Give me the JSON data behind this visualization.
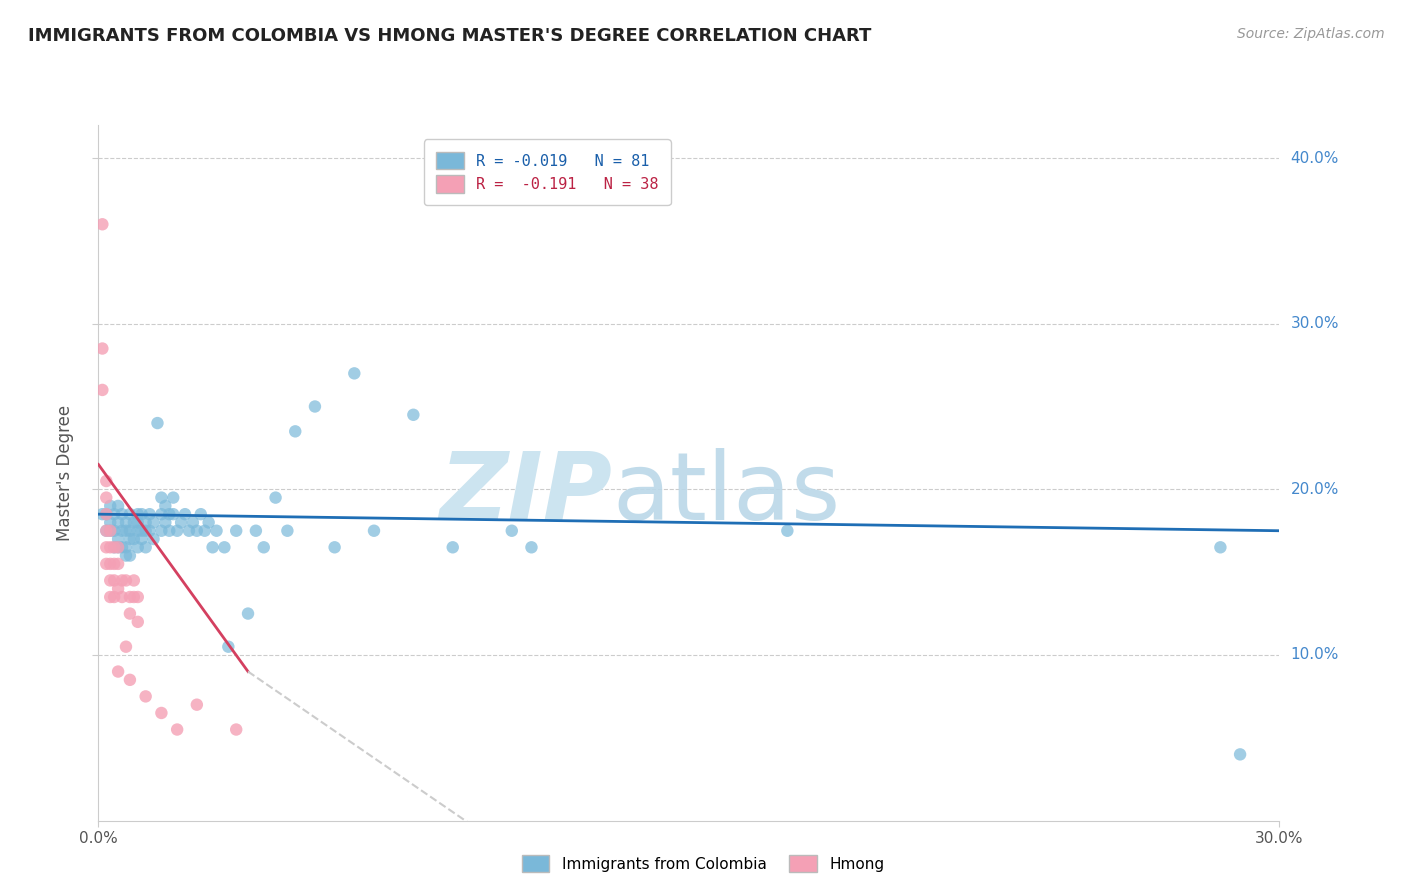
{
  "title": "IMMIGRANTS FROM COLOMBIA VS HMONG MASTER'S DEGREE CORRELATION CHART",
  "source": "Source: ZipAtlas.com",
  "ylabel": "Master's Degree",
  "xlim": [
    0.0,
    0.3
  ],
  "ylim": [
    0.0,
    0.42
  ],
  "blue_color": "#7ab8d9",
  "pink_color": "#f4a0b5",
  "blue_line_color": "#1f6eb5",
  "pink_line_color": "#d44060",
  "dashed_line_color": "#cccccc",
  "colombia_points": [
    [
      0.001,
      0.185
    ],
    [
      0.002,
      0.185
    ],
    [
      0.002,
      0.175
    ],
    [
      0.003,
      0.19
    ],
    [
      0.003,
      0.18
    ],
    [
      0.003,
      0.175
    ],
    [
      0.004,
      0.185
    ],
    [
      0.004,
      0.175
    ],
    [
      0.004,
      0.165
    ],
    [
      0.005,
      0.19
    ],
    [
      0.005,
      0.18
    ],
    [
      0.005,
      0.17
    ],
    [
      0.005,
      0.165
    ],
    [
      0.006,
      0.185
    ],
    [
      0.006,
      0.175
    ],
    [
      0.006,
      0.165
    ],
    [
      0.007,
      0.18
    ],
    [
      0.007,
      0.175
    ],
    [
      0.007,
      0.165
    ],
    [
      0.007,
      0.16
    ],
    [
      0.008,
      0.185
    ],
    [
      0.008,
      0.175
    ],
    [
      0.008,
      0.17
    ],
    [
      0.008,
      0.16
    ],
    [
      0.009,
      0.18
    ],
    [
      0.009,
      0.17
    ],
    [
      0.01,
      0.185
    ],
    [
      0.01,
      0.18
    ],
    [
      0.01,
      0.175
    ],
    [
      0.01,
      0.165
    ],
    [
      0.011,
      0.185
    ],
    [
      0.011,
      0.175
    ],
    [
      0.011,
      0.17
    ],
    [
      0.012,
      0.18
    ],
    [
      0.012,
      0.175
    ],
    [
      0.012,
      0.165
    ],
    [
      0.013,
      0.185
    ],
    [
      0.013,
      0.175
    ],
    [
      0.014,
      0.18
    ],
    [
      0.014,
      0.17
    ],
    [
      0.015,
      0.24
    ],
    [
      0.016,
      0.195
    ],
    [
      0.016,
      0.185
    ],
    [
      0.016,
      0.175
    ],
    [
      0.017,
      0.19
    ],
    [
      0.017,
      0.18
    ],
    [
      0.018,
      0.185
    ],
    [
      0.018,
      0.175
    ],
    [
      0.019,
      0.195
    ],
    [
      0.019,
      0.185
    ],
    [
      0.02,
      0.175
    ],
    [
      0.021,
      0.18
    ],
    [
      0.022,
      0.185
    ],
    [
      0.023,
      0.175
    ],
    [
      0.024,
      0.18
    ],
    [
      0.025,
      0.175
    ],
    [
      0.026,
      0.185
    ],
    [
      0.027,
      0.175
    ],
    [
      0.028,
      0.18
    ],
    [
      0.029,
      0.165
    ],
    [
      0.03,
      0.175
    ],
    [
      0.032,
      0.165
    ],
    [
      0.033,
      0.105
    ],
    [
      0.035,
      0.175
    ],
    [
      0.038,
      0.125
    ],
    [
      0.04,
      0.175
    ],
    [
      0.042,
      0.165
    ],
    [
      0.045,
      0.195
    ],
    [
      0.048,
      0.175
    ],
    [
      0.05,
      0.235
    ],
    [
      0.055,
      0.25
    ],
    [
      0.06,
      0.165
    ],
    [
      0.065,
      0.27
    ],
    [
      0.07,
      0.175
    ],
    [
      0.08,
      0.245
    ],
    [
      0.09,
      0.165
    ],
    [
      0.105,
      0.175
    ],
    [
      0.11,
      0.165
    ],
    [
      0.175,
      0.175
    ],
    [
      0.285,
      0.165
    ],
    [
      0.29,
      0.04
    ]
  ],
  "hmong_points": [
    [
      0.001,
      0.36
    ],
    [
      0.001,
      0.285
    ],
    [
      0.001,
      0.26
    ],
    [
      0.002,
      0.205
    ],
    [
      0.002,
      0.195
    ],
    [
      0.002,
      0.185
    ],
    [
      0.002,
      0.175
    ],
    [
      0.002,
      0.165
    ],
    [
      0.002,
      0.155
    ],
    [
      0.003,
      0.175
    ],
    [
      0.003,
      0.165
    ],
    [
      0.003,
      0.155
    ],
    [
      0.003,
      0.145
    ],
    [
      0.003,
      0.135
    ],
    [
      0.004,
      0.165
    ],
    [
      0.004,
      0.155
    ],
    [
      0.004,
      0.145
    ],
    [
      0.004,
      0.135
    ],
    [
      0.005,
      0.165
    ],
    [
      0.005,
      0.155
    ],
    [
      0.005,
      0.14
    ],
    [
      0.005,
      0.09
    ],
    [
      0.006,
      0.145
    ],
    [
      0.006,
      0.135
    ],
    [
      0.007,
      0.145
    ],
    [
      0.007,
      0.105
    ],
    [
      0.008,
      0.135
    ],
    [
      0.008,
      0.125
    ],
    [
      0.008,
      0.085
    ],
    [
      0.009,
      0.145
    ],
    [
      0.009,
      0.135
    ],
    [
      0.01,
      0.135
    ],
    [
      0.01,
      0.12
    ],
    [
      0.012,
      0.075
    ],
    [
      0.016,
      0.065
    ],
    [
      0.02,
      0.055
    ],
    [
      0.025,
      0.07
    ],
    [
      0.035,
      0.055
    ]
  ]
}
